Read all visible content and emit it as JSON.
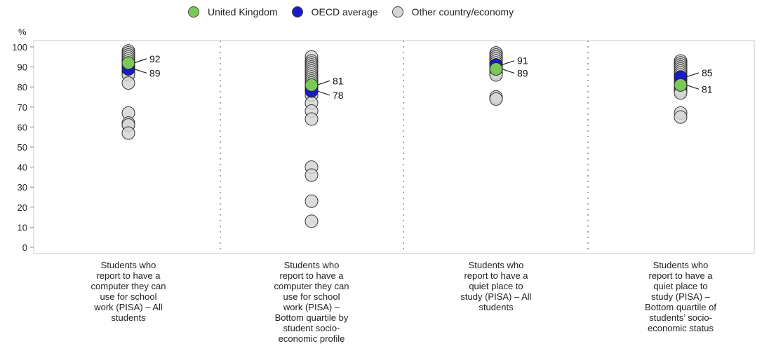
{
  "chart_data": {
    "type": "scatter",
    "ylabel": "%",
    "ylim": [
      0,
      100
    ],
    "yticks": [
      0,
      10,
      20,
      30,
      40,
      50,
      60,
      70,
      80,
      90,
      100
    ],
    "legend_position": "top",
    "categories": [
      "Students who report to have a computer they can use for school work (PISA) – All students",
      "Students who report to have a computer they can use for school work (PISA) – Bottom quartile by student socio-economic profile",
      "Students who report to have a quiet place to study (PISA) – All students",
      "Students who report to have a quiet place to study (PISA) – Bottom quartile of students’ socio-economic status"
    ],
    "category_lines": [
      [
        "Students who",
        "report to have a",
        "computer they can",
        "use for school",
        "work (PISA) – All",
        "students"
      ],
      [
        "Students who",
        "report to have a",
        "computer they can",
        "use for school",
        "work (PISA) –",
        "Bottom quartile by",
        "student socio-",
        "economic profile"
      ],
      [
        "Students who",
        "report to have a",
        "quiet place to",
        "study (PISA) – All",
        "students"
      ],
      [
        "Students who",
        "report to have a",
        "quiet place to",
        "study (PISA) –",
        "Bottom quartile of",
        "students’ socio-",
        "economic status"
      ]
    ],
    "series": [
      {
        "name": "United Kingdom",
        "color": "#7dc85a",
        "values": [
          92,
          81,
          89,
          81
        ]
      },
      {
        "name": "OECD average",
        "color": "#1b1bcc",
        "values": [
          89,
          78,
          91,
          85
        ]
      },
      {
        "name": "Other country/economy",
        "color": "#d3d7d3",
        "values": [
          [
            98,
            97,
            96,
            95,
            94,
            93,
            92,
            91,
            90,
            89,
            88,
            87,
            86,
            82,
            67,
            62,
            61,
            57
          ],
          [
            95,
            93,
            92,
            91,
            90,
            89,
            88,
            87,
            86,
            85,
            84,
            83,
            82,
            80,
            79,
            76,
            72,
            68,
            64,
            40,
            36,
            23,
            13
          ],
          [
            97,
            96,
            95,
            94,
            93,
            92,
            91,
            90,
            89,
            88,
            87,
            86,
            75,
            74
          ],
          [
            93,
            92,
            91,
            90,
            89,
            88,
            87,
            86,
            85,
            84,
            83,
            82,
            81,
            80,
            79,
            78,
            77,
            67,
            65
          ]
        ]
      }
    ],
    "value_labels": [
      {
        "category": 0,
        "value": 92,
        "text": "92",
        "series": "United Kingdom"
      },
      {
        "category": 0,
        "value": 89,
        "text": "89",
        "series": "OECD average"
      },
      {
        "category": 1,
        "value": 81,
        "text": "81",
        "series": "United Kingdom"
      },
      {
        "category": 1,
        "value": 78,
        "text": "78",
        "series": "OECD average"
      },
      {
        "category": 2,
        "value": 91,
        "text": "91",
        "series": "OECD average"
      },
      {
        "category": 2,
        "value": 89,
        "text": "89",
        "series": "United Kingdom"
      },
      {
        "category": 3,
        "value": 85,
        "text": "85",
        "series": "OECD average"
      },
      {
        "category": 3,
        "value": 81,
        "text": "81",
        "series": "United Kingdom"
      }
    ]
  }
}
